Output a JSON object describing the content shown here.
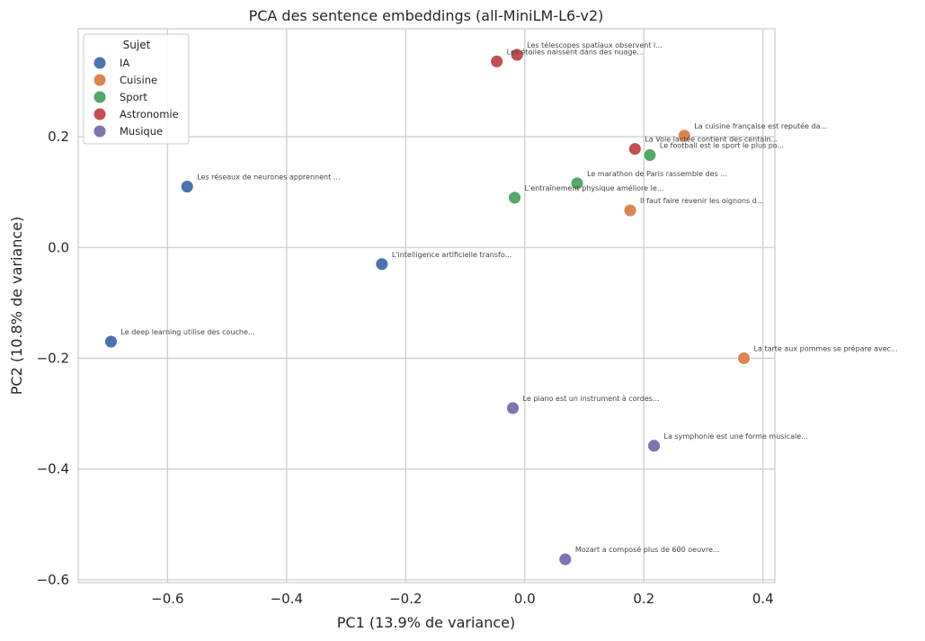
{
  "chart_data": {
    "type": "scatter",
    "title": "PCA des sentence embeddings (all-MiniLM-L6-v2)",
    "xlabel": "PC1 (13.9% de variance)",
    "ylabel": "PC2 (10.8% de variance)",
    "xlim": [
      -0.75,
      0.42
    ],
    "ylim": [
      -0.605,
      0.395
    ],
    "xticks": [
      -0.6,
      -0.4,
      -0.2,
      0.0,
      0.2,
      0.4
    ],
    "xtick_labels": [
      "−0.6",
      "−0.4",
      "−0.2",
      "0.0",
      "0.2",
      "0.4"
    ],
    "yticks": [
      -0.6,
      -0.4,
      -0.2,
      0.0,
      0.2
    ],
    "ytick_labels": [
      "−0.6",
      "−0.4",
      "−0.2",
      "0.0",
      "0.2"
    ],
    "grid": true,
    "legend": {
      "title": "Sujet",
      "position": "top-left",
      "entries": [
        {
          "name": "IA",
          "color": "#4c72b0"
        },
        {
          "name": "Cuisine",
          "color": "#dd8452"
        },
        {
          "name": "Sport",
          "color": "#55a868"
        },
        {
          "name": "Astronomie",
          "color": "#c44e52"
        },
        {
          "name": "Musique",
          "color": "#8172b3"
        }
      ]
    },
    "points": [
      {
        "x": -0.567,
        "y": 0.11,
        "group": "IA",
        "label": "Les réseaux de neurones apprennent ..."
      },
      {
        "x": -0.24,
        "y": -0.03,
        "group": "IA",
        "label": "L'intelligence artificielle transfo..."
      },
      {
        "x": -0.695,
        "y": -0.17,
        "group": "IA",
        "label": "Le deep learning utilise des couche..."
      },
      {
        "x": 0.268,
        "y": 0.202,
        "group": "Cuisine",
        "label": "La cuisine française est reputée da..."
      },
      {
        "x": 0.177,
        "y": 0.067,
        "group": "Cuisine",
        "label": "Il faut faire revenir les oignons d..."
      },
      {
        "x": 0.368,
        "y": -0.2,
        "group": "Cuisine",
        "label": "La tarte aux pommes se prépare avec..."
      },
      {
        "x": 0.21,
        "y": 0.167,
        "group": "Sport",
        "label": "Le football est le sport le plus po..."
      },
      {
        "x": 0.088,
        "y": 0.116,
        "group": "Sport",
        "label": "Le marathon de Paris rassemble des ..."
      },
      {
        "x": -0.017,
        "y": 0.09,
        "group": "Sport",
        "label": "L'entraînement physique améliore le..."
      },
      {
        "x": -0.013,
        "y": 0.348,
        "group": "Astronomie",
        "label": "Les télescopes spatiaux observent l..."
      },
      {
        "x": -0.047,
        "y": 0.336,
        "group": "Astronomie",
        "label": "Les étoiles naissent dans des nuage..."
      },
      {
        "x": 0.185,
        "y": 0.178,
        "group": "Astronomie",
        "label": "La Voie lactée contient des centain..."
      },
      {
        "x": -0.02,
        "y": -0.29,
        "group": "Musique",
        "label": "Le piano est un instrument à cordes..."
      },
      {
        "x": 0.217,
        "y": -0.358,
        "group": "Musique",
        "label": "La symphonie est une forme musicale..."
      },
      {
        "x": 0.068,
        "y": -0.563,
        "group": "Musique",
        "label": "Mozart a composé plus de 600 oeuvre..."
      }
    ]
  }
}
